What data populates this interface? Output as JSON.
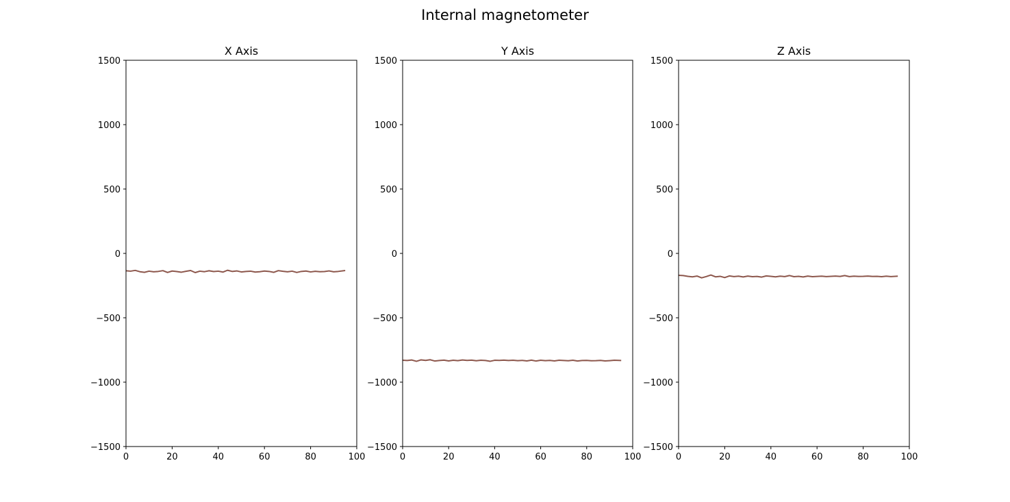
{
  "figure_title": "Internal magnetometer",
  "chart_data": [
    {
      "type": "line",
      "title": "X Axis",
      "xlabel": "",
      "ylabel": "",
      "xlim": [
        0,
        100
      ],
      "ylim": [
        -1500,
        1500
      ],
      "xticks": [
        0,
        20,
        40,
        60,
        80,
        100
      ],
      "yticks": [
        -1500,
        -1000,
        -500,
        0,
        500,
        1000,
        1500
      ],
      "ytick_labels": [
        "−1500",
        "−1000",
        "−500",
        "0",
        "500",
        "1000",
        "1500"
      ],
      "grid": false,
      "series": [
        {
          "color": "#8c564b",
          "x": [
            0,
            2,
            4,
            6,
            8,
            10,
            12,
            14,
            16,
            18,
            20,
            22,
            24,
            26,
            28,
            30,
            32,
            34,
            36,
            38,
            40,
            42,
            44,
            46,
            48,
            50,
            52,
            54,
            56,
            58,
            60,
            62,
            64,
            66,
            68,
            70,
            72,
            74,
            76,
            78,
            80,
            82,
            84,
            86,
            88,
            90,
            92,
            95
          ],
          "y": [
            -135,
            -138,
            -132,
            -142,
            -147,
            -138,
            -143,
            -140,
            -134,
            -148,
            -137,
            -141,
            -146,
            -139,
            -133,
            -149,
            -138,
            -142,
            -135,
            -141,
            -138,
            -145,
            -131,
            -140,
            -136,
            -144,
            -140,
            -138,
            -145,
            -142,
            -137,
            -140,
            -147,
            -134,
            -139,
            -143,
            -138,
            -148,
            -140,
            -137,
            -144,
            -139,
            -142,
            -141,
            -136,
            -143,
            -140,
            -133
          ]
        }
      ]
    },
    {
      "type": "line",
      "title": "Y Axis",
      "xlabel": "",
      "ylabel": "",
      "xlim": [
        0,
        100
      ],
      "ylim": [
        -1500,
        1500
      ],
      "xticks": [
        0,
        20,
        40,
        60,
        80,
        100
      ],
      "yticks": [
        -1500,
        -1000,
        -500,
        0,
        500,
        1000,
        1500
      ],
      "ytick_labels": [
        "−1500",
        "−1000",
        "−500",
        "0",
        "500",
        "1000",
        "1500"
      ],
      "grid": false,
      "series": [
        {
          "color": "#8c564b",
          "x": [
            0,
            2,
            4,
            6,
            8,
            10,
            12,
            14,
            16,
            18,
            20,
            22,
            24,
            26,
            28,
            30,
            32,
            34,
            36,
            38,
            40,
            42,
            44,
            46,
            48,
            50,
            52,
            54,
            56,
            58,
            60,
            62,
            64,
            66,
            68,
            70,
            72,
            74,
            76,
            78,
            80,
            82,
            84,
            86,
            88,
            90,
            92,
            95
          ],
          "y": [
            -830,
            -832,
            -828,
            -838,
            -827,
            -831,
            -826,
            -836,
            -832,
            -829,
            -835,
            -830,
            -833,
            -828,
            -831,
            -829,
            -834,
            -830,
            -832,
            -838,
            -830,
            -831,
            -829,
            -832,
            -830,
            -833,
            -831,
            -835,
            -829,
            -836,
            -830,
            -833,
            -831,
            -835,
            -830,
            -832,
            -834,
            -830,
            -836,
            -832,
            -831,
            -834,
            -833,
            -831,
            -835,
            -833,
            -830,
            -832
          ]
        }
      ]
    },
    {
      "type": "line",
      "title": "Z Axis",
      "xlabel": "",
      "ylabel": "",
      "xlim": [
        0,
        100
      ],
      "ylim": [
        -1500,
        1500
      ],
      "xticks": [
        0,
        20,
        40,
        60,
        80,
        100
      ],
      "yticks": [
        -1500,
        -1000,
        -500,
        0,
        500,
        1000,
        1500
      ],
      "ytick_labels": [
        "−1500",
        "−1000",
        "−500",
        "0",
        "500",
        "1000",
        "1500"
      ],
      "grid": false,
      "series": [
        {
          "color": "#8c564b",
          "x": [
            0,
            2,
            4,
            6,
            8,
            10,
            12,
            14,
            16,
            18,
            20,
            22,
            24,
            26,
            28,
            30,
            32,
            34,
            36,
            38,
            40,
            42,
            44,
            46,
            48,
            50,
            52,
            54,
            56,
            58,
            60,
            62,
            64,
            66,
            68,
            70,
            72,
            74,
            76,
            78,
            80,
            82,
            84,
            86,
            88,
            90,
            92,
            95
          ],
          "y": [
            -170,
            -172,
            -178,
            -182,
            -176,
            -190,
            -180,
            -168,
            -182,
            -178,
            -188,
            -175,
            -180,
            -177,
            -183,
            -176,
            -181,
            -179,
            -184,
            -175,
            -178,
            -182,
            -177,
            -180,
            -172,
            -181,
            -178,
            -183,
            -176,
            -181,
            -179,
            -177,
            -180,
            -178,
            -176,
            -179,
            -172,
            -180,
            -177,
            -179,
            -178,
            -176,
            -179,
            -178,
            -181,
            -177,
            -180,
            -177
          ]
        }
      ]
    }
  ]
}
